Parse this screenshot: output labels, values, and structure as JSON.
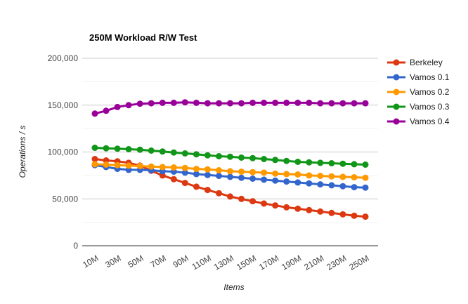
{
  "chart_data": {
    "type": "line",
    "title": "250M Workload R/W Test",
    "xlabel": "Items",
    "ylabel": "Operations / s",
    "ylim": [
      0,
      200000
    ],
    "yticks": [
      "0",
      "50,000",
      "100,000",
      "150,000",
      "200,000"
    ],
    "ytick_values": [
      0,
      50000,
      100000,
      150000,
      200000
    ],
    "x": [
      10,
      20,
      30,
      40,
      50,
      60,
      70,
      80,
      90,
      100,
      110,
      120,
      130,
      140,
      150,
      160,
      170,
      180,
      190,
      200,
      210,
      220,
      230,
      240,
      250
    ],
    "xtick_labels": [
      "10M",
      "30M",
      "50M",
      "70M",
      "90M",
      "110M",
      "130M",
      "150M",
      "170M",
      "190M",
      "210M",
      "230M",
      "250M"
    ],
    "xtick_values": [
      10,
      30,
      50,
      70,
      90,
      110,
      130,
      150,
      170,
      190,
      210,
      230,
      250
    ],
    "grid": true,
    "legend_position": "right",
    "series": [
      {
        "name": "Berkeley",
        "color": "#dc3912",
        "values": [
          92500,
          91000,
          90000,
          88500,
          85500,
          80000,
          75000,
          71000,
          67000,
          63000,
          59500,
          56000,
          52500,
          50000,
          47500,
          45000,
          43000,
          41000,
          39500,
          38000,
          36500,
          35000,
          33500,
          32000,
          31000
        ]
      },
      {
        "name": "Vamos 0.1",
        "color": "#3366cc",
        "values": [
          86000,
          84000,
          82000,
          81000,
          81000,
          80500,
          79500,
          79000,
          78000,
          76500,
          75500,
          74500,
          73500,
          72500,
          71500,
          70500,
          69500,
          68500,
          67500,
          66500,
          65500,
          64500,
          63500,
          62500,
          62000
        ]
      },
      {
        "name": "Vamos 0.2",
        "color": "#ff9900",
        "values": [
          87000,
          86500,
          86000,
          85500,
          85000,
          84500,
          84000,
          83500,
          83000,
          82000,
          81500,
          80500,
          79500,
          79000,
          78500,
          78000,
          77000,
          76500,
          76000,
          75000,
          74500,
          74000,
          73500,
          73000,
          72500
        ]
      },
      {
        "name": "Vamos 0.3",
        "color": "#109618",
        "values": [
          104500,
          104000,
          103500,
          103000,
          102500,
          101500,
          100500,
          99500,
          98500,
          97500,
          96500,
          95500,
          95000,
          94000,
          93500,
          92500,
          91500,
          90500,
          89500,
          89000,
          88500,
          88000,
          87500,
          87000,
          86500
        ]
      },
      {
        "name": "Vamos 0.4",
        "color": "#990099",
        "values": [
          141000,
          144000,
          148000,
          150000,
          151500,
          152000,
          152500,
          152500,
          153000,
          152500,
          152000,
          152000,
          152000,
          152000,
          152500,
          152500,
          152500,
          152500,
          152500,
          152500,
          152000,
          152000,
          152000,
          152000,
          152000
        ]
      }
    ]
  }
}
